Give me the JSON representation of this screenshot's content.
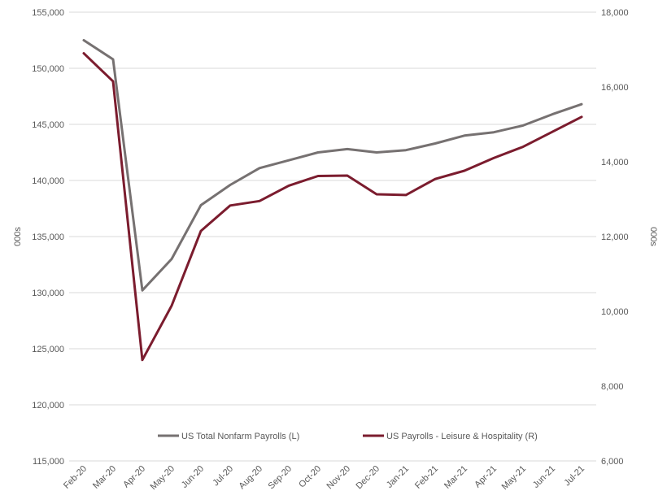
{
  "chart_data": {
    "type": "line",
    "categories": [
      "Feb-20",
      "Mar-20",
      "Apr-20",
      "May-20",
      "Jun-20",
      "Jul-20",
      "Aug-20",
      "Sep-20",
      "Oct-20",
      "Nov-20",
      "Dec-20",
      "Jan-21",
      "Feb-21",
      "Mar-21",
      "Apr-21",
      "May-21",
      "Jun-21",
      "Jul-21"
    ],
    "left_axis": {
      "label": "000s",
      "ylim": [
        115000,
        155000
      ],
      "ticks": [
        "115,000",
        "120,000",
        "125,000",
        "130,000",
        "135,000",
        "140,000",
        "145,000",
        "150,000",
        "155,000"
      ]
    },
    "right_axis": {
      "label": "000s",
      "ylim": [
        6000,
        18000
      ],
      "ticks": [
        "6,000",
        "8,000",
        "10,000",
        "12,000",
        "14,000",
        "16,000",
        "18,000"
      ]
    },
    "series": [
      {
        "name": "US Total Nonfarm Payrolls (L)",
        "axis": "left",
        "color": "#767171",
        "values": [
          152500,
          150800,
          130200,
          133000,
          137800,
          139600,
          141100,
          141800,
          142500,
          142800,
          142500,
          142700,
          143300,
          144000,
          144300,
          144900,
          145900,
          146800
        ]
      },
      {
        "name": "US Payrolls - Leisure & Hospitality (R)",
        "axis": "right",
        "color": "#7b1c2e",
        "values": [
          16900,
          16150,
          8700,
          10150,
          12150,
          12830,
          12950,
          13360,
          13620,
          13630,
          13130,
          13110,
          13540,
          13760,
          14100,
          14400,
          14800,
          15200
        ]
      }
    ],
    "grid": true,
    "legend": "bottom-inside"
  }
}
